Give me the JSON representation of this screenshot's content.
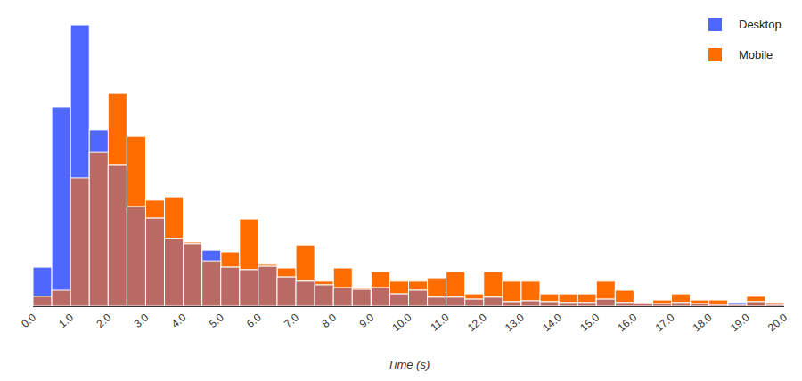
{
  "chart_data": {
    "type": "histogram",
    "x_label": "Time (s)",
    "bins": [
      0,
      0.5,
      1,
      1.5,
      2,
      2.5,
      3,
      3.5,
      4,
      4.5,
      5,
      5.5,
      6,
      6.5,
      7,
      7.5,
      8,
      8.5,
      9,
      9.5,
      10,
      10.5,
      11,
      11.5,
      12,
      12.5,
      13,
      13.5,
      14,
      14.5,
      15,
      15.5,
      16,
      16.5,
      17,
      17.5,
      18,
      18.5,
      19,
      19.5,
      20
    ],
    "series": [
      {
        "name": "Desktop",
        "color": "#4f67fd",
        "values": [
          13.9,
          70.9,
          100,
          62.7,
          50.3,
          35.4,
          31.3,
          24.1,
          22.2,
          19.9,
          13.9,
          13,
          14.2,
          10.4,
          8.9,
          7.6,
          6.6,
          6,
          6.6,
          4.4,
          5.7,
          3.2,
          3.2,
          2.5,
          3.2,
          1.6,
          1.9,
          1.6,
          1.3,
          1.3,
          2.5,
          1.3,
          0.9,
          0.9,
          1.3,
          0.9,
          0.6,
          1.3,
          1.6,
          0.6
        ]
      },
      {
        "name": "Mobile",
        "color": "#ff6d00",
        "values": [
          3.5,
          5.7,
          45.6,
          54.7,
          75.6,
          60.4,
          37.7,
          38.9,
          22.8,
          16.1,
          19.3,
          31,
          14.9,
          13.6,
          21.8,
          8.9,
          13.6,
          6.6,
          12.3,
          8.9,
          8.9,
          10.1,
          12.3,
          4.4,
          12.3,
          8.9,
          8.9,
          4.4,
          4.4,
          4.4,
          8.9,
          5.7,
          1.3,
          2.2,
          4.4,
          2.2,
          2.2,
          0.6,
          3.5,
          1.3
        ]
      }
    ],
    "xlim": [
      0,
      20
    ],
    "xticks": [
      {
        "value": 0,
        "label": "0.0"
      },
      {
        "value": 1,
        "label": "1.0"
      },
      {
        "value": 2,
        "label": "2.0"
      },
      {
        "value": 3,
        "label": "3.0"
      },
      {
        "value": 4,
        "label": "4.0"
      },
      {
        "value": 5,
        "label": "5.0"
      },
      {
        "value": 6,
        "label": "6.0"
      },
      {
        "value": 7,
        "label": "7.0"
      },
      {
        "value": 8,
        "label": "8.0"
      },
      {
        "value": 9,
        "label": "9.0"
      },
      {
        "value": 10,
        "label": "10.0"
      },
      {
        "value": 11,
        "label": "11.0"
      },
      {
        "value": 12,
        "label": "12.0"
      },
      {
        "value": 13,
        "label": "13.0"
      },
      {
        "value": 14,
        "label": "14.0"
      },
      {
        "value": 15,
        "label": "15.0"
      },
      {
        "value": 16,
        "label": "16.0"
      },
      {
        "value": 17,
        "label": "17.0"
      },
      {
        "value": 18,
        "label": "18.0"
      },
      {
        "value": 19,
        "label": "19.0"
      },
      {
        "value": 20,
        "label": "20.0"
      }
    ],
    "ylim": [
      0,
      100
    ],
    "grid": false,
    "legend": "top-right",
    "tick_labels": "x"
  }
}
